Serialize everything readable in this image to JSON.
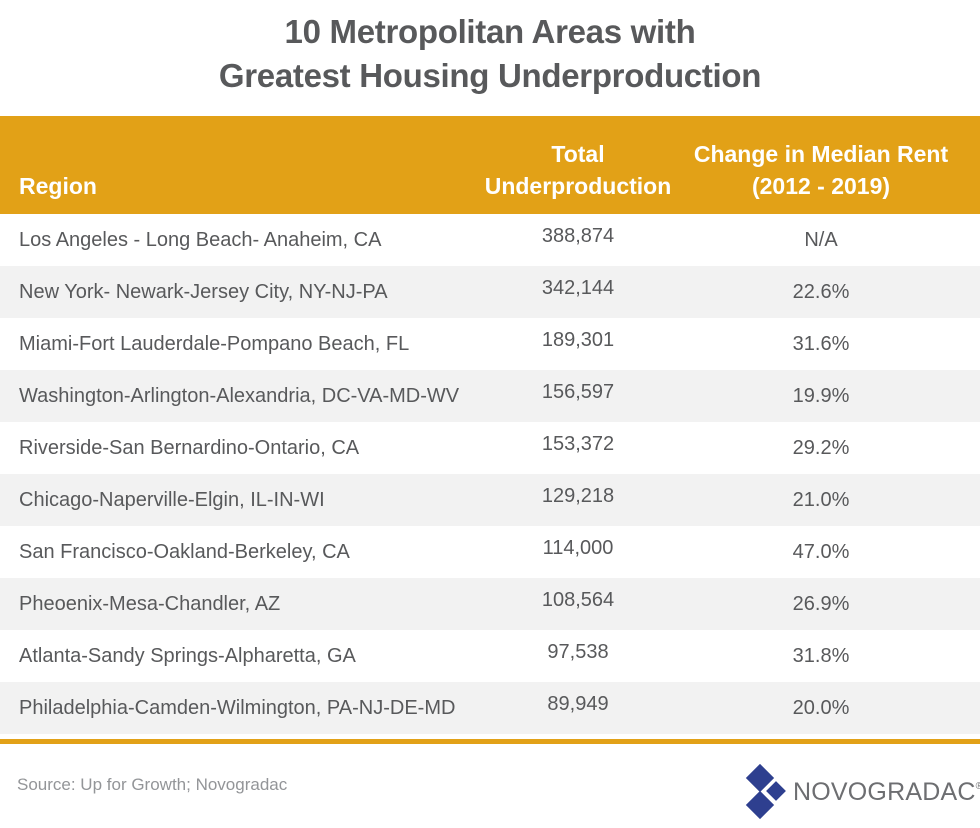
{
  "title": {
    "line1": "10 Metropolitan Areas with",
    "line2": "Greatest Housing Underproduction"
  },
  "colors": {
    "header_bg": "#e2a117",
    "row_alt_bg": "#f2f2f2",
    "text": "#58595b",
    "logo_blue": "#2e3f8f"
  },
  "chart_data": {
    "type": "table",
    "title": "10 Metropolitan Areas with Greatest Housing Underproduction",
    "columns": [
      "Region",
      "Total Underproduction",
      "Change in Median Rent (2012 - 2019)"
    ],
    "header": {
      "region": "Region",
      "under_line1": "Total",
      "under_line2": "Underproduction",
      "rent_line1": "Change in Median Rent",
      "rent_line2": "(2012 - 2019)"
    },
    "rows": [
      {
        "region": "Los Angeles - Long Beach- Anaheim, CA",
        "underproduction": "388,874",
        "rent_change": "N/A"
      },
      {
        "region": "New York- Newark-Jersey City, NY-NJ-PA",
        "underproduction": "342,144",
        "rent_change": "22.6%"
      },
      {
        "region": "Miami-Fort Lauderdale-Pompano Beach, FL",
        "underproduction": "189,301",
        "rent_change": "31.6%"
      },
      {
        "region": "Washington-Arlington-Alexandria, DC-VA-MD-WV",
        "underproduction": "156,597",
        "rent_change": "19.9%"
      },
      {
        "region": "Riverside-San Bernardino-Ontario, CA",
        "underproduction": "153,372",
        "rent_change": "29.2%"
      },
      {
        "region": "Chicago-Naperville-Elgin, IL-IN-WI",
        "underproduction": "129,218",
        "rent_change": "21.0%"
      },
      {
        "region": "San Francisco-Oakland-Berkeley, CA",
        "underproduction": "114,000",
        "rent_change": "47.0%"
      },
      {
        "region": "Pheoenix-Mesa-Chandler, AZ",
        "underproduction": "108,564",
        "rent_change": "26.9%"
      },
      {
        "region": "Atlanta-Sandy Springs-Alpharetta, GA",
        "underproduction": "97,538",
        "rent_change": "31.8%"
      },
      {
        "region": "Philadelphia-Camden-Wilmington, PA-NJ-DE-MD",
        "underproduction": "89,949",
        "rent_change": "20.0%"
      }
    ]
  },
  "footer": {
    "source": "Source: Up for Growth; Novogradac",
    "logo_text": "NOVOGRADAC",
    "logo_mark": "®",
    "logo_icon": "diamond-tiles-icon"
  }
}
